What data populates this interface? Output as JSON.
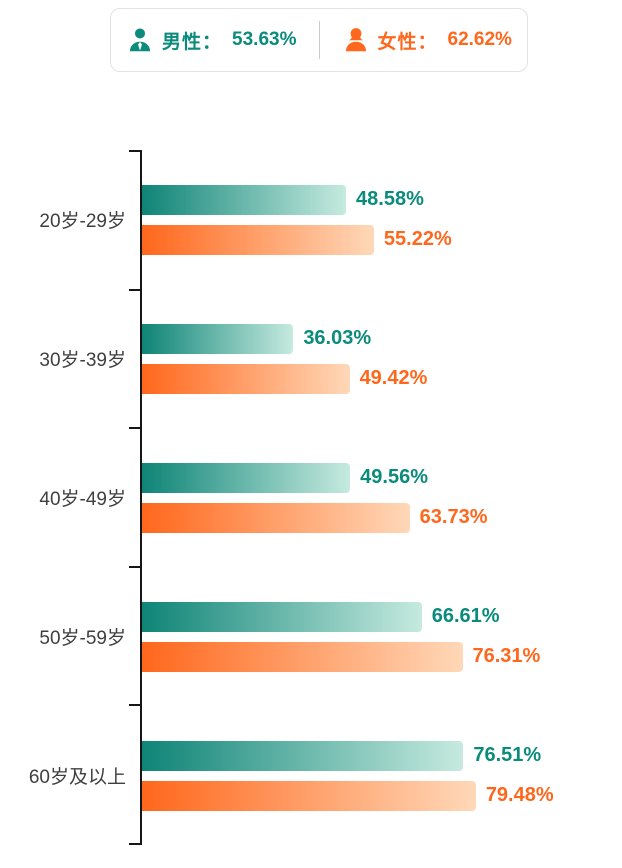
{
  "legend": {
    "male": {
      "label": "男性：",
      "value": "53.63%"
    },
    "female": {
      "label": "女性：",
      "value": "62.62%"
    }
  },
  "colors": {
    "male_bar_start": "#0e8477",
    "male_bar_end": "#c6eadf",
    "male_text": "#0a8b7c",
    "female_bar_start": "#ff671c",
    "female_bar_end": "#ffd8b8",
    "female_text": "#ff671c",
    "axis": "#161616",
    "category_text": "#3f3f3f"
  },
  "chart_data": {
    "type": "bar",
    "orientation": "horizontal",
    "title": "",
    "xlabel": "",
    "ylabel": "",
    "xlim": [
      0,
      100
    ],
    "grid": false,
    "legend_position": "top",
    "value_suffix": "%",
    "categories": [
      "20岁-29岁",
      "30岁-39岁",
      "40岁-49岁",
      "50岁-59岁",
      "60岁及以上"
    ],
    "series": [
      {
        "name": "男性",
        "values": [
          48.58,
          36.03,
          49.56,
          66.61,
          76.51
        ],
        "color": "#0e8477",
        "gradient_end": "#c6eadf",
        "label_color": "#0a8b7c"
      },
      {
        "name": "女性",
        "values": [
          55.22,
          49.42,
          63.73,
          76.31,
          79.48
        ],
        "color": "#ff671c",
        "gradient_end": "#ffd8b8",
        "label_color": "#ff671c"
      }
    ]
  }
}
